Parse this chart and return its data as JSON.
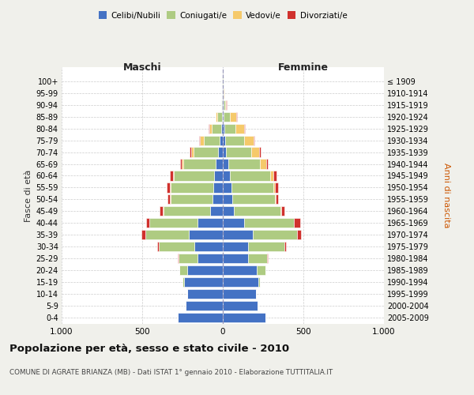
{
  "age_groups": [
    "0-4",
    "5-9",
    "10-14",
    "15-19",
    "20-24",
    "25-29",
    "30-34",
    "35-39",
    "40-44",
    "45-49",
    "50-54",
    "55-59",
    "60-64",
    "65-69",
    "70-74",
    "75-79",
    "80-84",
    "85-89",
    "90-94",
    "95-99",
    "100+"
  ],
  "birth_years": [
    "2005-2009",
    "2000-2004",
    "1995-1999",
    "1990-1994",
    "1985-1989",
    "1980-1984",
    "1975-1979",
    "1970-1974",
    "1965-1969",
    "1960-1964",
    "1955-1959",
    "1950-1954",
    "1945-1949",
    "1940-1944",
    "1935-1939",
    "1930-1934",
    "1925-1929",
    "1920-1924",
    "1915-1919",
    "1910-1914",
    "≤ 1909"
  ],
  "maschi": {
    "celibi": [
      280,
      230,
      220,
      240,
      220,
      155,
      175,
      210,
      155,
      80,
      65,
      60,
      55,
      45,
      30,
      20,
      10,
      4,
      3,
      2,
      2
    ],
    "coniugati": [
      0,
      2,
      3,
      10,
      50,
      120,
      220,
      270,
      300,
      290,
      260,
      265,
      250,
      200,
      150,
      100,
      60,
      30,
      5,
      2,
      1
    ],
    "vedovi": [
      0,
      0,
      0,
      0,
      0,
      0,
      1,
      1,
      2,
      2,
      2,
      3,
      5,
      10,
      15,
      20,
      15,
      10,
      2,
      0,
      0
    ],
    "divorziati": [
      0,
      0,
      0,
      0,
      2,
      5,
      10,
      25,
      20,
      20,
      15,
      18,
      18,
      12,
      10,
      5,
      3,
      2,
      0,
      0,
      0
    ]
  },
  "femmine": {
    "nubili": [
      265,
      215,
      205,
      220,
      210,
      155,
      155,
      185,
      130,
      70,
      60,
      55,
      45,
      35,
      20,
      15,
      8,
      5,
      4,
      3,
      2
    ],
    "coniugate": [
      0,
      1,
      3,
      12,
      55,
      120,
      225,
      275,
      310,
      290,
      265,
      260,
      250,
      195,
      155,
      115,
      70,
      40,
      10,
      3,
      1
    ],
    "vedove": [
      0,
      0,
      0,
      0,
      0,
      0,
      1,
      2,
      3,
      5,
      5,
      10,
      20,
      40,
      50,
      60,
      55,
      40,
      8,
      2,
      1
    ],
    "divorziate": [
      0,
      0,
      0,
      0,
      2,
      5,
      10,
      25,
      35,
      18,
      15,
      18,
      18,
      10,
      10,
      6,
      4,
      3,
      1,
      0,
      0
    ]
  },
  "colors": {
    "celibi": "#4472C4",
    "coniugati": "#AECB82",
    "vedovi": "#F5C96A",
    "divorziati": "#D0312D"
  },
  "xlim": 1000,
  "title": "Popolazione per età, sesso e stato civile - 2010",
  "subtitle": "COMUNE DI AGRATE BRIANZA (MB) - Dati ISTAT 1° gennaio 2010 - Elaborazione TUTTITALIA.IT",
  "ylabel_left": "Fasce di età",
  "ylabel_right": "Anni di nascita",
  "xlabel_left": "Maschi",
  "xlabel_right": "Femmine",
  "bg_color": "#f0f0eb",
  "plot_bg_color": "#ffffff",
  "legend_labels": [
    "Celibi/Nubili",
    "Coniugati/e",
    "Vedovi/e",
    "Divorziati/e"
  ]
}
